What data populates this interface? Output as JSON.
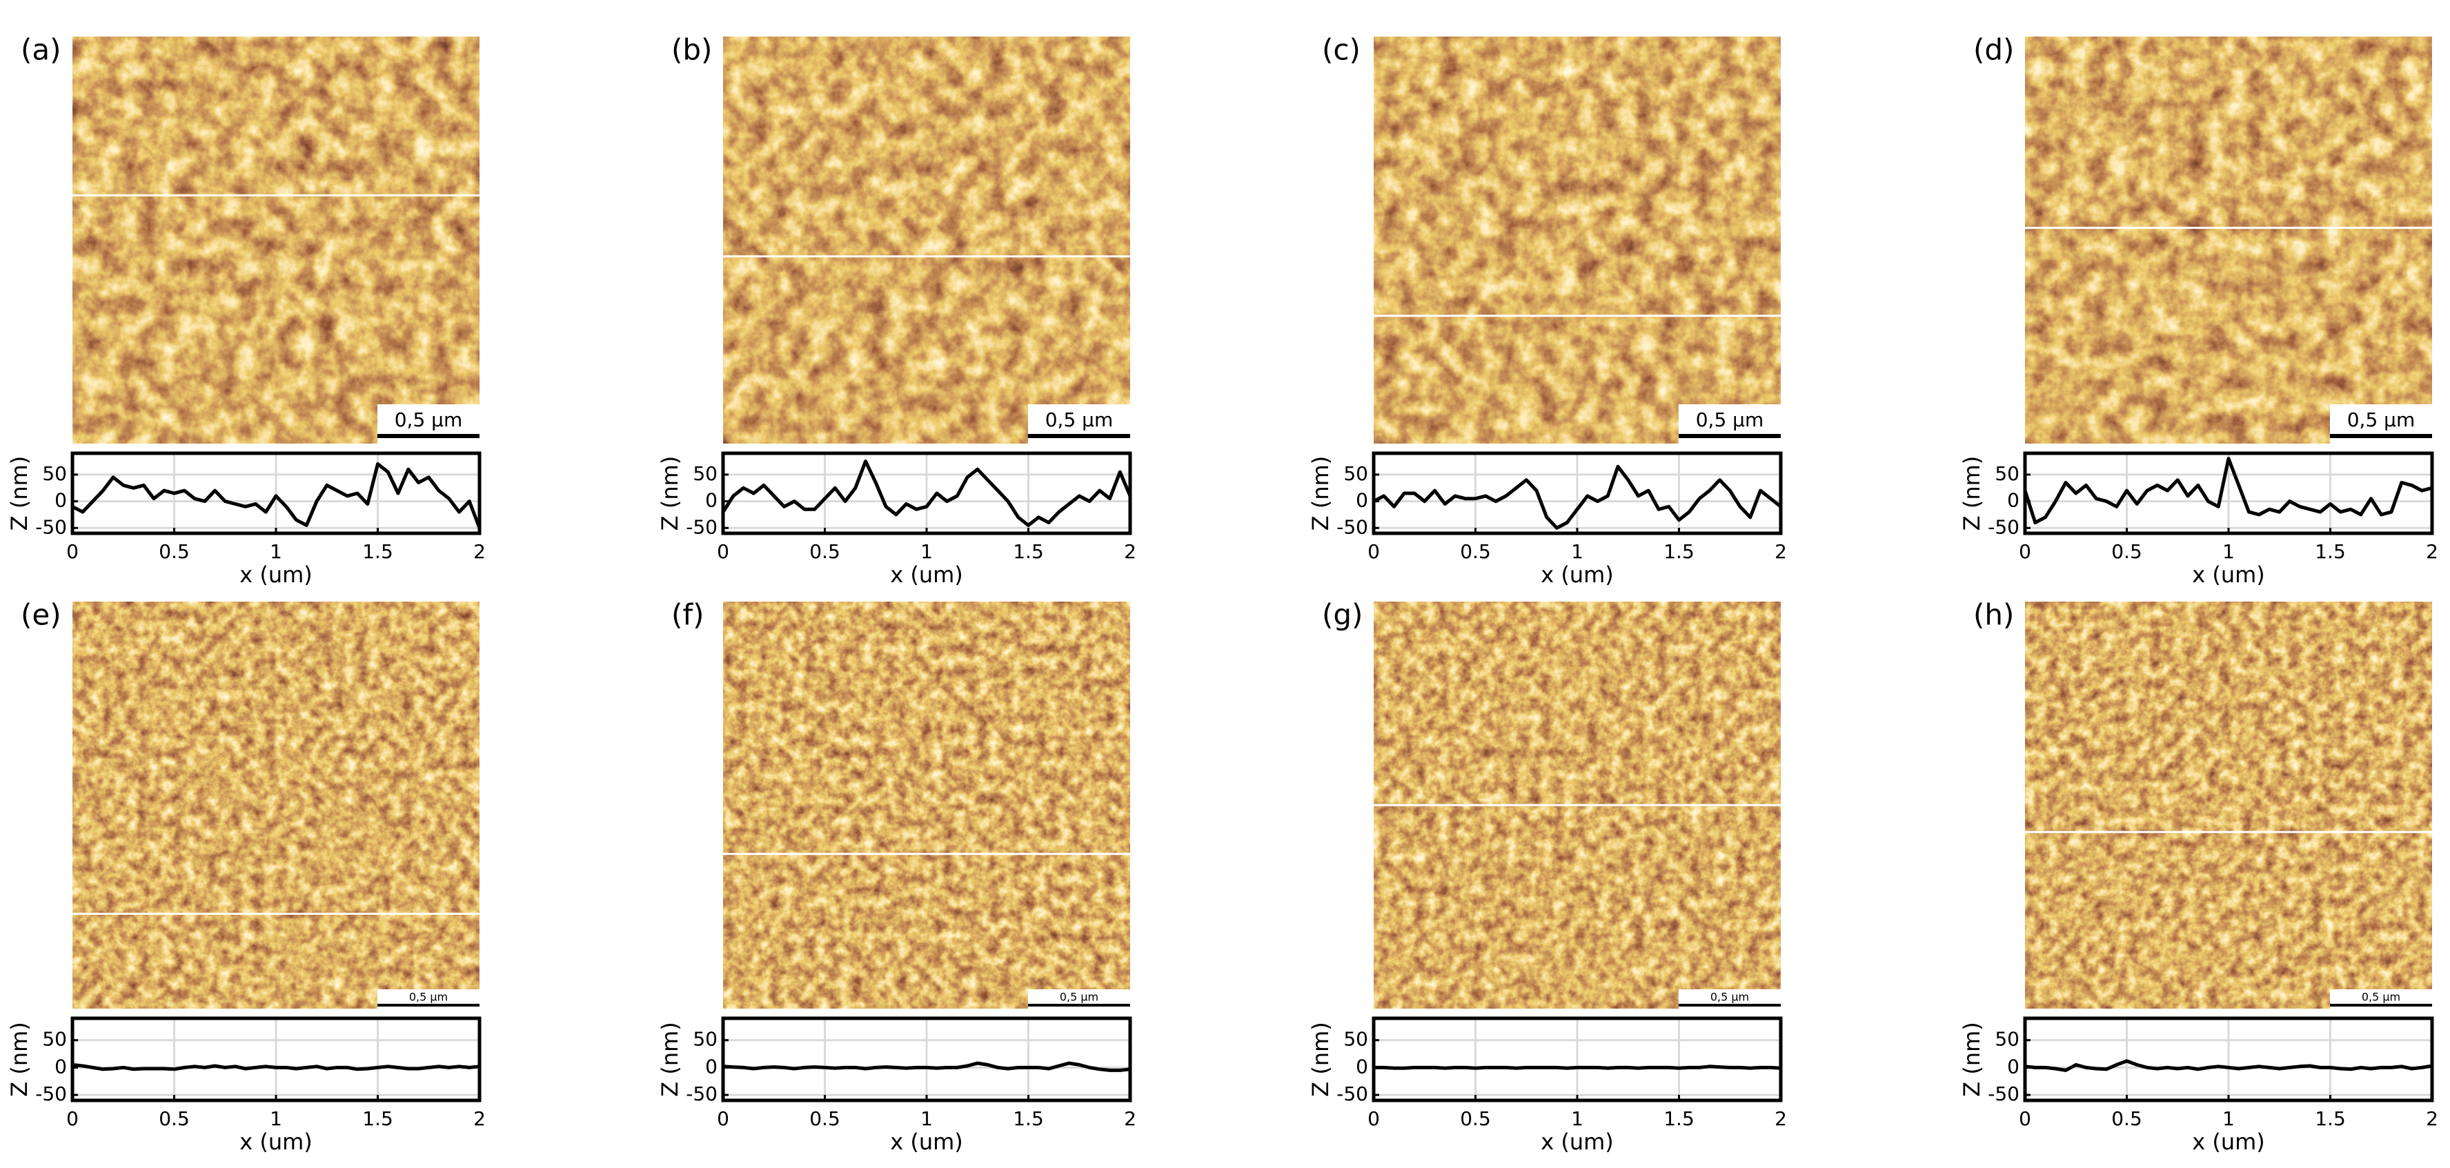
{
  "chart_data": [
    {
      "type": "line",
      "panel_label": "(a)",
      "scale_bar": "0,5 µm",
      "xlabel": "x (um)",
      "ylabel": "Z (nm)",
      "color": "#000000",
      "grid": true,
      "x": [
        0,
        0.05,
        0.1,
        0.15,
        0.2,
        0.25,
        0.3,
        0.35,
        0.4,
        0.45,
        0.5,
        0.55,
        0.6,
        0.65,
        0.7,
        0.75,
        0.8,
        0.85,
        0.9,
        0.95,
        1,
        1.05,
        1.1,
        1.15,
        1.2,
        1.25,
        1.3,
        1.35,
        1.4,
        1.45,
        1.5,
        1.55,
        1.6,
        1.65,
        1.7,
        1.75,
        1.8,
        1.85,
        1.9,
        1.95,
        2
      ],
      "values": [
        -10,
        -20,
        0,
        20,
        45,
        30,
        25,
        30,
        5,
        20,
        15,
        20,
        5,
        0,
        20,
        0,
        -5,
        -10,
        -5,
        -20,
        10,
        -10,
        -35,
        -45,
        0,
        30,
        20,
        10,
        15,
        -5,
        70,
        55,
        15,
        60,
        35,
        45,
        20,
        5,
        -20,
        0,
        -50
      ],
      "xlim": [
        0,
        2
      ],
      "ylim": [
        -60,
        90
      ],
      "xticks": [
        0,
        0.5,
        1,
        1.5,
        2
      ],
      "yticks": [
        -50,
        0,
        50
      ]
    },
    {
      "type": "line",
      "panel_label": "(b)",
      "scale_bar": "0,5 µm",
      "xlabel": "x (um)",
      "ylabel": "Z (nm)",
      "color": "#000000",
      "grid": true,
      "x": [
        0,
        0.05,
        0.1,
        0.15,
        0.2,
        0.25,
        0.3,
        0.35,
        0.4,
        0.45,
        0.5,
        0.55,
        0.6,
        0.65,
        0.7,
        0.75,
        0.8,
        0.85,
        0.9,
        0.95,
        1,
        1.05,
        1.1,
        1.15,
        1.2,
        1.25,
        1.3,
        1.35,
        1.4,
        1.45,
        1.5,
        1.55,
        1.6,
        1.65,
        1.7,
        1.75,
        1.8,
        1.85,
        1.9,
        1.95,
        2
      ],
      "values": [
        -20,
        10,
        25,
        15,
        30,
        10,
        -10,
        0,
        -15,
        -15,
        5,
        25,
        0,
        25,
        75,
        35,
        -10,
        -25,
        -5,
        -15,
        -10,
        15,
        0,
        10,
        45,
        60,
        40,
        20,
        0,
        -30,
        -45,
        -30,
        -40,
        -20,
        -5,
        10,
        0,
        20,
        5,
        55,
        10
      ],
      "xlim": [
        0,
        2
      ],
      "ylim": [
        -60,
        90
      ],
      "xticks": [
        0,
        0.5,
        1,
        1.5,
        2
      ],
      "yticks": [
        -50,
        0,
        50
      ]
    },
    {
      "type": "line",
      "panel_label": "(c)",
      "scale_bar": "0,5 µm",
      "xlabel": "x (um)",
      "ylabel": "Z (nm)",
      "color": "#000000",
      "grid": true,
      "x": [
        0,
        0.05,
        0.1,
        0.15,
        0.2,
        0.25,
        0.3,
        0.35,
        0.4,
        0.45,
        0.5,
        0.55,
        0.6,
        0.65,
        0.7,
        0.75,
        0.8,
        0.85,
        0.9,
        0.95,
        1,
        1.05,
        1.1,
        1.15,
        1.2,
        1.25,
        1.3,
        1.35,
        1.4,
        1.45,
        1.5,
        1.55,
        1.6,
        1.65,
        1.7,
        1.75,
        1.8,
        1.85,
        1.9,
        1.95,
        2
      ],
      "values": [
        0,
        10,
        -10,
        15,
        15,
        0,
        20,
        -5,
        10,
        5,
        5,
        10,
        0,
        10,
        25,
        40,
        20,
        -30,
        -50,
        -40,
        -15,
        10,
        0,
        10,
        65,
        40,
        10,
        20,
        -15,
        -10,
        -35,
        -20,
        5,
        20,
        40,
        20,
        -10,
        -30,
        20,
        5,
        -10
      ],
      "xlim": [
        0,
        2
      ],
      "ylim": [
        -60,
        90
      ],
      "xticks": [
        0,
        0.5,
        1,
        1.5,
        2
      ],
      "yticks": [
        -50,
        0,
        50
      ]
    },
    {
      "type": "line",
      "panel_label": "(d)",
      "scale_bar": "0,5 µm",
      "xlabel": "x (um)",
      "ylabel": "Z (nm)",
      "color": "#000000",
      "grid": true,
      "x": [
        0,
        0.05,
        0.1,
        0.15,
        0.2,
        0.25,
        0.3,
        0.35,
        0.4,
        0.45,
        0.5,
        0.55,
        0.6,
        0.65,
        0.7,
        0.75,
        0.8,
        0.85,
        0.9,
        0.95,
        1,
        1.05,
        1.1,
        1.15,
        1.2,
        1.25,
        1.3,
        1.35,
        1.4,
        1.45,
        1.5,
        1.55,
        1.6,
        1.65,
        1.7,
        1.75,
        1.8,
        1.85,
        1.9,
        1.95,
        2
      ],
      "values": [
        20,
        -40,
        -30,
        0,
        35,
        15,
        30,
        5,
        0,
        -10,
        20,
        -5,
        20,
        30,
        20,
        40,
        10,
        30,
        0,
        -10,
        80,
        30,
        -20,
        -25,
        -15,
        -20,
        0,
        -10,
        -15,
        -20,
        -5,
        -20,
        -15,
        -25,
        5,
        -25,
        -20,
        35,
        30,
        20,
        25
      ],
      "xlim": [
        0,
        2
      ],
      "ylim": [
        -60,
        90
      ],
      "xticks": [
        0,
        0.5,
        1,
        1.5,
        2
      ],
      "yticks": [
        -50,
        0,
        50
      ]
    },
    {
      "type": "line",
      "panel_label": "(e)",
      "scale_bar": "0,5 µm",
      "xlabel": "x (um)",
      "ylabel": "Z (nm)",
      "color": "#000000",
      "grid": true,
      "x": [
        0,
        0.05,
        0.1,
        0.15,
        0.2,
        0.25,
        0.3,
        0.35,
        0.4,
        0.45,
        0.5,
        0.55,
        0.6,
        0.65,
        0.7,
        0.75,
        0.8,
        0.85,
        0.9,
        0.95,
        1,
        1.05,
        1.1,
        1.15,
        1.2,
        1.25,
        1.3,
        1.35,
        1.4,
        1.45,
        1.5,
        1.55,
        1.6,
        1.65,
        1.7,
        1.75,
        1.8,
        1.85,
        1.9,
        1.95,
        2
      ],
      "values": [
        5,
        3,
        0,
        -3,
        -2,
        0,
        -3,
        -2,
        -2,
        -2,
        -3,
        0,
        2,
        0,
        3,
        0,
        2,
        -2,
        0,
        2,
        0,
        0,
        -2,
        0,
        2,
        -2,
        0,
        0,
        -3,
        -2,
        0,
        2,
        0,
        -2,
        -2,
        0,
        2,
        0,
        2,
        0,
        2
      ],
      "xlim": [
        0,
        2
      ],
      "ylim": [
        -60,
        90
      ],
      "xticks": [
        0,
        0.5,
        1,
        1.5,
        2
      ],
      "yticks": [
        -50,
        0,
        50
      ]
    },
    {
      "type": "line",
      "panel_label": "(f)",
      "scale_bar": "0,5 µm",
      "xlabel": "x (um)",
      "ylabel": "Z (nm)",
      "color": "#000000",
      "grid": true,
      "x": [
        0,
        0.05,
        0.1,
        0.15,
        0.2,
        0.25,
        0.3,
        0.35,
        0.4,
        0.45,
        0.5,
        0.55,
        0.6,
        0.65,
        0.7,
        0.75,
        0.8,
        0.85,
        0.9,
        0.95,
        1,
        1.05,
        1.1,
        1.15,
        1.2,
        1.25,
        1.3,
        1.35,
        1.4,
        1.45,
        1.5,
        1.55,
        1.6,
        1.65,
        1.7,
        1.75,
        1.8,
        1.85,
        1.9,
        1.95,
        2
      ],
      "values": [
        2,
        1,
        0,
        -2,
        0,
        1,
        0,
        -2,
        0,
        1,
        0,
        -1,
        0,
        0,
        -2,
        0,
        1,
        0,
        -1,
        0,
        0,
        -1,
        0,
        0,
        3,
        8,
        5,
        0,
        -2,
        0,
        0,
        0,
        -2,
        3,
        8,
        5,
        0,
        -3,
        -5,
        -5,
        -3
      ],
      "xlim": [
        0,
        2
      ],
      "ylim": [
        -60,
        90
      ],
      "xticks": [
        0,
        0.5,
        1,
        1.5,
        2
      ],
      "yticks": [
        -50,
        0,
        50
      ]
    },
    {
      "type": "line",
      "panel_label": "(g)",
      "scale_bar": "0,5 µm",
      "xlabel": "x (um)",
      "ylabel": "Z (nm)",
      "color": "#000000",
      "grid": true,
      "x": [
        0,
        0.05,
        0.1,
        0.15,
        0.2,
        0.25,
        0.3,
        0.35,
        0.4,
        0.45,
        0.5,
        0.55,
        0.6,
        0.65,
        0.7,
        0.75,
        0.8,
        0.85,
        0.9,
        0.95,
        1,
        1.05,
        1.1,
        1.15,
        1.2,
        1.25,
        1.3,
        1.35,
        1.4,
        1.45,
        1.5,
        1.55,
        1.6,
        1.65,
        1.7,
        1.75,
        1.8,
        1.85,
        1.9,
        1.95,
        2
      ],
      "values": [
        0,
        0,
        -1,
        -1,
        0,
        0,
        0,
        -1,
        0,
        0,
        -1,
        0,
        0,
        0,
        -1,
        0,
        0,
        0,
        0,
        -1,
        0,
        0,
        0,
        -1,
        0,
        0,
        -1,
        0,
        0,
        0,
        -1,
        0,
        0,
        2,
        1,
        0,
        0,
        -1,
        0,
        0,
        -1
      ],
      "xlim": [
        0,
        2
      ],
      "ylim": [
        -60,
        90
      ],
      "xticks": [
        0,
        0.5,
        1,
        1.5,
        2
      ],
      "yticks": [
        -50,
        0,
        50
      ]
    },
    {
      "type": "line",
      "panel_label": "(h)",
      "scale_bar": "0,5 µm",
      "xlabel": "x (um)",
      "ylabel": "Z (nm)",
      "color": "#000000",
      "grid": true,
      "x": [
        0,
        0.05,
        0.1,
        0.15,
        0.2,
        0.25,
        0.3,
        0.35,
        0.4,
        0.45,
        0.5,
        0.55,
        0.6,
        0.65,
        0.7,
        0.75,
        0.8,
        0.85,
        0.9,
        0.95,
        1,
        1.05,
        1.1,
        1.15,
        1.2,
        1.25,
        1.3,
        1.35,
        1.4,
        1.45,
        1.5,
        1.55,
        1.6,
        1.65,
        1.7,
        1.75,
        1.8,
        1.85,
        1.9,
        1.95,
        2
      ],
      "values": [
        2,
        0,
        0,
        -2,
        -5,
        5,
        0,
        -2,
        -3,
        5,
        12,
        5,
        0,
        -2,
        0,
        -2,
        0,
        -3,
        0,
        2,
        0,
        -2,
        0,
        2,
        0,
        -2,
        0,
        2,
        3,
        0,
        0,
        -2,
        -3,
        0,
        -2,
        0,
        0,
        2,
        -2,
        0,
        3
      ],
      "xlim": [
        0,
        2
      ],
      "ylim": [
        -60,
        90
      ],
      "xticks": [
        0,
        0.5,
        1,
        1.5,
        2
      ],
      "yticks": [
        -50,
        0,
        50
      ]
    }
  ]
}
